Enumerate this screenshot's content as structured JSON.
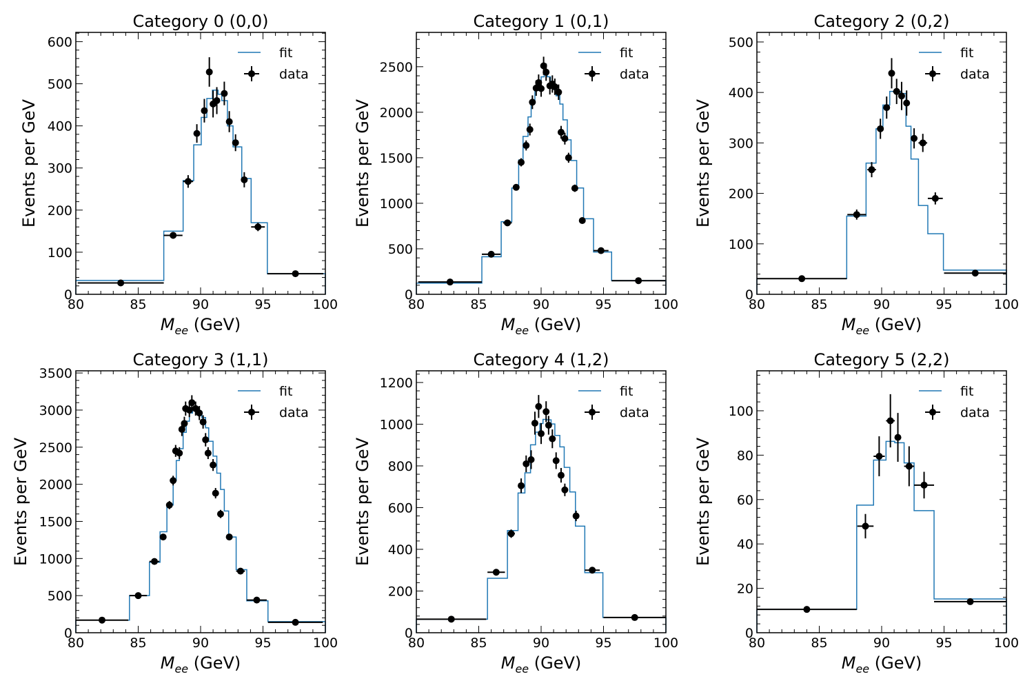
{
  "chart_data": [
    {
      "type": "histogram-fit",
      "title": "Category 0 (0,0)",
      "xlabel_main": "M",
      "xlabel_sub": "ee",
      "xlabel_unit": " (GeV)",
      "ylabel": "Events per GeV",
      "xlim": [
        80,
        100
      ],
      "ylim": [
        0,
        622
      ],
      "xticks": [
        80,
        85,
        90,
        95,
        100
      ],
      "yticks": [
        0,
        100,
        200,
        300,
        400,
        500,
        600
      ],
      "yminor": 20,
      "legend": {
        "position": "top-right",
        "entries": [
          "fit",
          "data"
        ]
      },
      "fit": {
        "name": "fit",
        "color": "#1f77b4",
        "edges": [
          80,
          87.05,
          88.6,
          89.45,
          90.05,
          90.5,
          90.95,
          91.4,
          91.7,
          92.15,
          92.6,
          93.3,
          94.05,
          95.35,
          100
        ],
        "values": [
          33,
          150,
          270,
          355,
          420,
          465,
          485,
          475,
          460,
          400,
          350,
          275,
          170,
          49
        ]
      },
      "data": {
        "name": "data",
        "color": "#000000",
        "x": [
          83.6,
          87.8,
          89.0,
          89.7,
          90.3,
          90.7,
          91.0,
          91.3,
          91.9,
          92.3,
          92.8,
          93.5,
          94.6,
          97.6
        ],
        "y": [
          27,
          140,
          268,
          382,
          436,
          528,
          452,
          460,
          477,
          410,
          360,
          272,
          160,
          49
        ],
        "yerr": [
          2,
          8,
          15,
          22,
          28,
          35,
          32,
          32,
          28,
          25,
          20,
          18,
          10,
          3
        ]
      }
    },
    {
      "type": "histogram-fit",
      "title": "Category 1 (0,1)",
      "xlabel_main": "M",
      "xlabel_sub": "ee",
      "xlabel_unit": " (GeV)",
      "ylabel": "Events per GeV",
      "xlim": [
        80,
        100
      ],
      "ylim": [
        0,
        2877
      ],
      "xticks": [
        80,
        85,
        90,
        95,
        100
      ],
      "yticks": [
        0,
        500,
        1000,
        1500,
        2000,
        2500
      ],
      "yminor": 100,
      "legend": {
        "position": "top-right",
        "entries": [
          "fit",
          "data"
        ]
      },
      "fit": {
        "name": "fit",
        "color": "#1f77b4",
        "edges": [
          80,
          85.25,
          86.8,
          87.65,
          88.2,
          88.55,
          88.95,
          89.2,
          89.5,
          89.7,
          90.0,
          90.25,
          90.5,
          90.75,
          91.0,
          91.2,
          91.5,
          91.75,
          92.1,
          92.4,
          92.85,
          93.4,
          94.2,
          95.65,
          100
        ],
        "values": [
          123,
          413,
          798,
          1168,
          1475,
          1735,
          1949,
          2100,
          2250,
          2326,
          2389,
          2414,
          2390,
          2330,
          2250,
          2180,
          2090,
          1916,
          1697,
          1470,
          1168,
          830,
          465,
          151
        ]
      },
      "data": {
        "name": "data",
        "color": "#000000",
        "x": [
          82.7,
          86.0,
          87.3,
          88.0,
          88.4,
          88.8,
          89.1,
          89.3,
          89.6,
          89.8,
          90.0,
          90.2,
          90.4,
          90.7,
          90.9,
          91.1,
          91.4,
          91.6,
          91.9,
          92.2,
          92.7,
          93.3,
          94.8,
          97.8
        ],
        "y": [
          135,
          440,
          785,
          1175,
          1450,
          1635,
          1810,
          2110,
          2265,
          2325,
          2260,
          2510,
          2440,
          2290,
          2310,
          2280,
          2220,
          1780,
          1710,
          1500,
          1165,
          810,
          480,
          150
        ],
        "yerr": [
          5,
          15,
          25,
          35,
          45,
          55,
          65,
          75,
          85,
          90,
          90,
          100,
          95,
          95,
          95,
          90,
          85,
          70,
          65,
          55,
          40,
          25,
          15,
          5
        ]
      }
    },
    {
      "type": "histogram-fit",
      "title": "Category 2 (0,2)",
      "xlabel_main": "M",
      "xlabel_sub": "ee",
      "xlabel_unit": " (GeV)",
      "ylabel": "Events per GeV",
      "xlim": [
        80,
        100
      ],
      "ylim": [
        0,
        519
      ],
      "xticks": [
        80,
        85,
        90,
        95,
        100
      ],
      "yticks": [
        0,
        100,
        200,
        300,
        400,
        500
      ],
      "yminor": 20,
      "legend": {
        "position": "top-right",
        "entries": [
          "fit",
          "data"
        ]
      },
      "fit": {
        "name": "fit",
        "color": "#1f77b4",
        "edges": [
          80,
          87.2,
          88.75,
          89.55,
          90.1,
          90.65,
          91.5,
          91.95,
          92.35,
          92.95,
          93.7,
          94.95,
          100
        ],
        "values": [
          31,
          155,
          260,
          328,
          375,
          402,
          398,
          333,
          268,
          176,
          120,
          48
        ]
      },
      "data": {
        "name": "data",
        "color": "#000000",
        "x": [
          83.6,
          88.0,
          89.2,
          89.9,
          90.4,
          90.8,
          91.2,
          91.6,
          92.0,
          92.6,
          93.3,
          94.3,
          97.5
        ],
        "y": [
          31,
          158,
          247,
          328,
          370,
          438,
          402,
          393,
          379,
          309,
          300,
          190,
          42
        ],
        "yerr": [
          1.5,
          10,
          15,
          20,
          22,
          30,
          25,
          28,
          25,
          20,
          18,
          12,
          2
        ]
      }
    },
    {
      "type": "histogram-fit",
      "title": "Category 3 (1,1)",
      "xlabel_main": "M",
      "xlabel_sub": "ee",
      "xlabel_unit": " (GeV)",
      "ylabel": "Events per GeV",
      "xlim": [
        80,
        100
      ],
      "ylim": [
        0,
        3529
      ],
      "xticks": [
        80,
        85,
        90,
        95,
        100
      ],
      "yticks": [
        0,
        500,
        1000,
        1500,
        2000,
        2500,
        3000,
        3500
      ],
      "yminor": 100,
      "legend": {
        "position": "top-right",
        "entries": [
          "fit",
          "data"
        ]
      },
      "fit": {
        "name": "fit",
        "color": "#1f77b4",
        "edges": [
          80,
          84.3,
          85.9,
          86.75,
          87.3,
          87.8,
          88.05,
          88.3,
          88.6,
          88.85,
          89.1,
          89.35,
          89.6,
          89.9,
          90.1,
          90.4,
          90.65,
          91.0,
          91.3,
          91.6,
          91.9,
          92.25,
          92.85,
          93.7,
          95.4,
          100
        ],
        "values": [
          170,
          500,
          950,
          1360,
          1720,
          2050,
          2320,
          2480,
          2700,
          2850,
          2960,
          3020,
          3000,
          2980,
          2900,
          2760,
          2580,
          2380,
          2150,
          1930,
          1640,
          1290,
          850,
          430,
          150
        ]
      },
      "data": {
        "name": "data",
        "color": "#000000",
        "x": [
          82.1,
          85.0,
          86.3,
          87.0,
          87.5,
          87.8,
          88.0,
          88.3,
          88.5,
          88.7,
          88.8,
          89.1,
          89.3,
          89.6,
          89.9,
          90.2,
          90.4,
          90.6,
          91.0,
          91.2,
          91.6,
          92.3,
          93.2,
          94.5,
          97.6
        ],
        "y": [
          170,
          500,
          960,
          1290,
          1720,
          2050,
          2450,
          2420,
          2740,
          2820,
          3020,
          3000,
          3100,
          3020,
          2960,
          2840,
          2600,
          2420,
          2260,
          1880,
          1600,
          1290,
          830,
          440,
          140
        ],
        "yerr": [
          5,
          15,
          25,
          35,
          55,
          65,
          80,
          80,
          90,
          90,
          95,
          95,
          100,
          95,
          95,
          90,
          90,
          80,
          80,
          70,
          55,
          40,
          25,
          12,
          4
        ]
      }
    },
    {
      "type": "histogram-fit",
      "title": "Category 4 (1,2)",
      "xlabel_main": "M",
      "xlabel_sub": "ee",
      "xlabel_unit": " (GeV)",
      "ylabel": "Events per GeV",
      "xlim": [
        80,
        100
      ],
      "ylim": [
        0,
        1256
      ],
      "xticks": [
        80,
        85,
        90,
        95,
        100
      ],
      "yticks": [
        0,
        200,
        400,
        600,
        800,
        1000,
        1200
      ],
      "yminor": 40,
      "legend": {
        "position": "top-right",
        "entries": [
          "fit",
          "data"
        ]
      },
      "fit": {
        "name": "fit",
        "color": "#1f77b4",
        "edges": [
          80,
          85.7,
          87.3,
          88.15,
          88.7,
          89.15,
          89.55,
          89.9,
          90.15,
          90.45,
          90.8,
          91.1,
          91.5,
          91.85,
          92.3,
          92.75,
          93.5,
          94.95,
          100
        ],
        "values": [
          65,
          261,
          490,
          670,
          767,
          901,
          962,
          1003,
          1023,
          1021,
          1001,
          946,
          891,
          793,
          675,
          511,
          288,
          73
        ]
      },
      "data": {
        "name": "data",
        "color": "#000000",
        "x": [
          82.8,
          86.4,
          87.6,
          88.4,
          88.8,
          89.2,
          89.5,
          89.8,
          90.0,
          90.4,
          90.6,
          90.9,
          91.2,
          91.6,
          91.9,
          92.8,
          94.1,
          97.5
        ],
        "y": [
          65,
          290,
          475,
          705,
          810,
          830,
          1005,
          1085,
          955,
          1060,
          995,
          930,
          825,
          755,
          685,
          560,
          300,
          73
        ],
        "yerr": [
          3,
          10,
          20,
          35,
          40,
          45,
          55,
          55,
          50,
          50,
          45,
          45,
          40,
          35,
          30,
          25,
          12,
          3
        ]
      }
    },
    {
      "type": "histogram-fit",
      "title": "Category 5 (2,2)",
      "xlabel_main": "M",
      "xlabel_sub": "ee",
      "xlabel_unit": " (GeV)",
      "ylabel": "Events per GeV",
      "xlim": [
        80,
        100
      ],
      "ylim": [
        0,
        118
      ],
      "xticks": [
        80,
        85,
        90,
        95,
        100
      ],
      "yticks": [
        0,
        20,
        40,
        60,
        80,
        100
      ],
      "yminor": 4,
      "legend": {
        "position": "top-right",
        "entries": [
          "fit",
          "data"
        ]
      },
      "fit": {
        "name": "fit",
        "color": "#1f77b4",
        "edges": [
          80,
          88.0,
          89.35,
          90.35,
          91.05,
          91.8,
          92.6,
          94.2,
          100
        ],
        "values": [
          10.5,
          57.5,
          77.8,
          86.2,
          85.6,
          76.5,
          55,
          15.2
        ]
      },
      "data": {
        "name": "data",
        "color": "#000000",
        "x": [
          84.0,
          88.7,
          89.8,
          90.7,
          91.3,
          92.2,
          93.4,
          97.1
        ],
        "y": [
          10.5,
          48,
          79.5,
          95.5,
          88,
          75,
          66.5,
          14
        ],
        "yerr": [
          0.7,
          5.5,
          9,
          12,
          11,
          9,
          6,
          0.6
        ]
      }
    }
  ]
}
